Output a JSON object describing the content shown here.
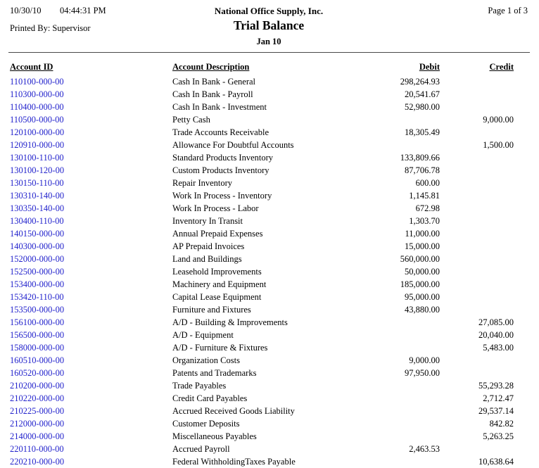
{
  "header": {
    "date": "10/30/10",
    "time": "04:44:31 PM",
    "printed_by": "Printed By: Supervisor",
    "company": "National Office Supply, Inc.",
    "report_title": "Trial Balance",
    "period": "Jan 10",
    "page_indicator": "Page 1 of 3"
  },
  "colors": {
    "account_id_link": "#2222CC",
    "text": "#000000",
    "rule": "#4a4a4a"
  },
  "table": {
    "columns": [
      "Account ID",
      "Account Description",
      "Debit",
      "Credit"
    ],
    "rows": [
      {
        "id": "110100-000-00",
        "description": "Cash In Bank - General",
        "debit": "298,264.93",
        "credit": ""
      },
      {
        "id": "110300-000-00",
        "description": "Cash In Bank - Payroll",
        "debit": "20,541.67",
        "credit": ""
      },
      {
        "id": "110400-000-00",
        "description": "Cash In Bank - Investment",
        "debit": "52,980.00",
        "credit": ""
      },
      {
        "id": "110500-000-00",
        "description": "Petty Cash",
        "debit": "",
        "credit": "9,000.00"
      },
      {
        "id": "120100-000-00",
        "description": "Trade Accounts Receivable",
        "debit": "18,305.49",
        "credit": ""
      },
      {
        "id": "120910-000-00",
        "description": "Allowance For Doubtful Accounts",
        "debit": "",
        "credit": "1,500.00"
      },
      {
        "id": "130100-110-00",
        "description": "Standard Products Inventory",
        "debit": "133,809.66",
        "credit": ""
      },
      {
        "id": "130100-120-00",
        "description": "Custom Products Inventory",
        "debit": "87,706.78",
        "credit": ""
      },
      {
        "id": "130150-110-00",
        "description": "Repair Inventory",
        "debit": "600.00",
        "credit": ""
      },
      {
        "id": "130310-140-00",
        "description": "Work In Process - Inventory",
        "debit": "1,145.81",
        "credit": ""
      },
      {
        "id": "130350-140-00",
        "description": "Work In Process - Labor",
        "debit": "672.98",
        "credit": ""
      },
      {
        "id": "130400-110-00",
        "description": "Inventory In Transit",
        "debit": "1,303.70",
        "credit": ""
      },
      {
        "id": "140150-000-00",
        "description": "Annual Prepaid Expenses",
        "debit": "11,000.00",
        "credit": ""
      },
      {
        "id": "140300-000-00",
        "description": "AP Prepaid Invoices",
        "debit": "15,000.00",
        "credit": ""
      },
      {
        "id": "152000-000-00",
        "description": "Land and Buildings",
        "debit": "560,000.00",
        "credit": ""
      },
      {
        "id": "152500-000-00",
        "description": "Leasehold Improvements",
        "debit": "50,000.00",
        "credit": ""
      },
      {
        "id": "153400-000-00",
        "description": "Machinery and Equipment",
        "debit": "185,000.00",
        "credit": ""
      },
      {
        "id": "153420-110-00",
        "description": "Capital Lease Equipment",
        "debit": "95,000.00",
        "credit": ""
      },
      {
        "id": "153500-000-00",
        "description": "Furniture and Fixtures",
        "debit": "43,880.00",
        "credit": ""
      },
      {
        "id": "156100-000-00",
        "description": "A/D - Building & Improvements",
        "debit": "",
        "credit": "27,085.00"
      },
      {
        "id": "156500-000-00",
        "description": "A/D - Equipment",
        "debit": "",
        "credit": "20,040.00"
      },
      {
        "id": "158000-000-00",
        "description": "A/D - Furniture & Fixtures",
        "debit": "",
        "credit": "5,483.00"
      },
      {
        "id": "160510-000-00",
        "description": "Organization Costs",
        "debit": "9,000.00",
        "credit": ""
      },
      {
        "id": "160520-000-00",
        "description": "Patents and Trademarks",
        "debit": "97,950.00",
        "credit": ""
      },
      {
        "id": "210200-000-00",
        "description": "Trade Payables",
        "debit": "",
        "credit": "55,293.28"
      },
      {
        "id": "210220-000-00",
        "description": "Credit Card Payables",
        "debit": "",
        "credit": "2,712.47"
      },
      {
        "id": "210225-000-00",
        "description": "Accrued Received Goods Liability",
        "debit": "",
        "credit": "29,537.14"
      },
      {
        "id": "212000-000-00",
        "description": "Customer Deposits",
        "debit": "",
        "credit": "842.82"
      },
      {
        "id": "214000-000-00",
        "description": "Miscellaneous Payables",
        "debit": "",
        "credit": "5,263.25"
      },
      {
        "id": "220110-000-00",
        "description": "Accrued Payroll",
        "debit": "2,463.53",
        "credit": ""
      },
      {
        "id": "220210-000-00",
        "description": "Federal WithholdingTaxes Payable",
        "debit": "",
        "credit": "10,638.64"
      }
    ]
  }
}
